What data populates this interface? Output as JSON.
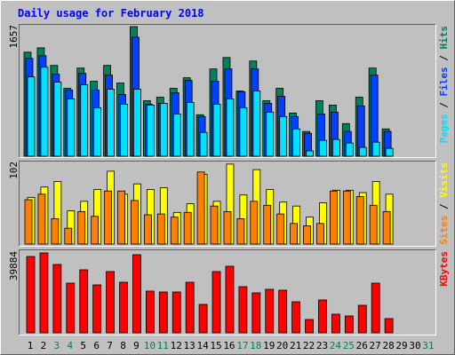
{
  "chart_data": [
    {
      "type": "bar",
      "title": "Daily usage for February 2018",
      "ylim": [
        0,
        1657
      ],
      "yticks": [
        1657
      ],
      "series": [
        {
          "name": "Hits",
          "color": "#00805c",
          "values": [
            1330,
            1386,
            1161,
            868,
            1127,
            958,
            1161,
            936,
            1657,
            710,
            755,
            868,
            1003,
            530,
            1116,
            1262,
            834,
            1217,
            710,
            868,
            552,
            316,
            710,
            654,
            417,
            755,
            1127,
            349,
            null,
            null,
            null
          ]
        },
        {
          "name": "Files",
          "color": "#0040ff",
          "values": [
            1251,
            1285,
            1048,
            845,
            1060,
            845,
            1037,
            789,
            1522,
            665,
            676,
            812,
            969,
            507,
            958,
            1116,
            823,
            1116,
            676,
            766,
            507,
            293,
            541,
            564,
            316,
            643,
            1037,
            316,
            null,
            null,
            null
          ]
        },
        {
          "name": "Pages",
          "color": "#00e0ff",
          "values": [
            1014,
            1138,
            947,
            733,
            913,
            620,
            857,
            665,
            857,
            654,
            676,
            541,
            688,
            304,
            665,
            733,
            620,
            834,
            564,
            507,
            349,
            68,
            203,
            214,
            169,
            113,
            180,
            101,
            null,
            null,
            null
          ]
        }
      ]
    },
    {
      "type": "bar",
      "ylim": [
        0,
        102
      ],
      "yticks": [
        102
      ],
      "series": [
        {
          "name": "Visits",
          "color": "#ffff00",
          "values": [
            59,
            72,
            79,
            42,
            54,
            69,
            92,
            63,
            76,
            69,
            71,
            40,
            51,
            88,
            54,
            101,
            62,
            94,
            69,
            53,
            48,
            34,
            52,
            68,
            68,
            65,
            79,
            63,
            null,
            null,
            null
          ]
        },
        {
          "name": "Sites",
          "color": "#ff8000",
          "values": [
            56,
            63,
            32,
            20,
            41,
            35,
            67,
            67,
            55,
            37,
            38,
            34,
            40,
            91,
            48,
            41,
            32,
            54,
            49,
            38,
            26,
            23,
            26,
            67,
            67,
            60,
            49,
            41,
            null,
            null,
            null
          ]
        }
      ]
    },
    {
      "type": "bar",
      "ylim": [
        0,
        39884
      ],
      "yticks": [
        39884
      ],
      "categories": [
        "1",
        "2",
        "3",
        "4",
        "5",
        "6",
        "7",
        "8",
        "9",
        "10",
        "11",
        "12",
        "13",
        "14",
        "15",
        "16",
        "17",
        "18",
        "19",
        "20",
        "21",
        "22",
        "23",
        "24",
        "25",
        "26",
        "27",
        "28",
        "29",
        "30",
        "31"
      ],
      "label_colors": [
        "#000000",
        "#000000",
        "#00805c",
        "#00805c",
        "#000000",
        "#000000",
        "#000000",
        "#000000",
        "#000000",
        "#00805c",
        "#00805c",
        "#000000",
        "#000000",
        "#000000",
        "#000000",
        "#000000",
        "#00805c",
        "#00805c",
        "#000000",
        "#000000",
        "#000000",
        "#000000",
        "#000000",
        "#00805c",
        "#00805c",
        "#000000",
        "#000000",
        "#000000",
        "#000000",
        "#000000",
        "#00805c"
      ],
      "series": [
        {
          "name": "KBytes",
          "color": "#ff0000",
          "values": [
            38112,
            39884,
            34124,
            24816,
            31465,
            23930,
            30579,
            25259,
            38999,
            20830,
            20387,
            20387,
            25259,
            14181,
            30579,
            33238,
            23044,
            19944,
            21716,
            21273,
            15510,
            6647,
            16397,
            9306,
            8420,
            13738,
            24816,
            7091,
            null,
            null,
            null
          ]
        }
      ]
    }
  ]
}
